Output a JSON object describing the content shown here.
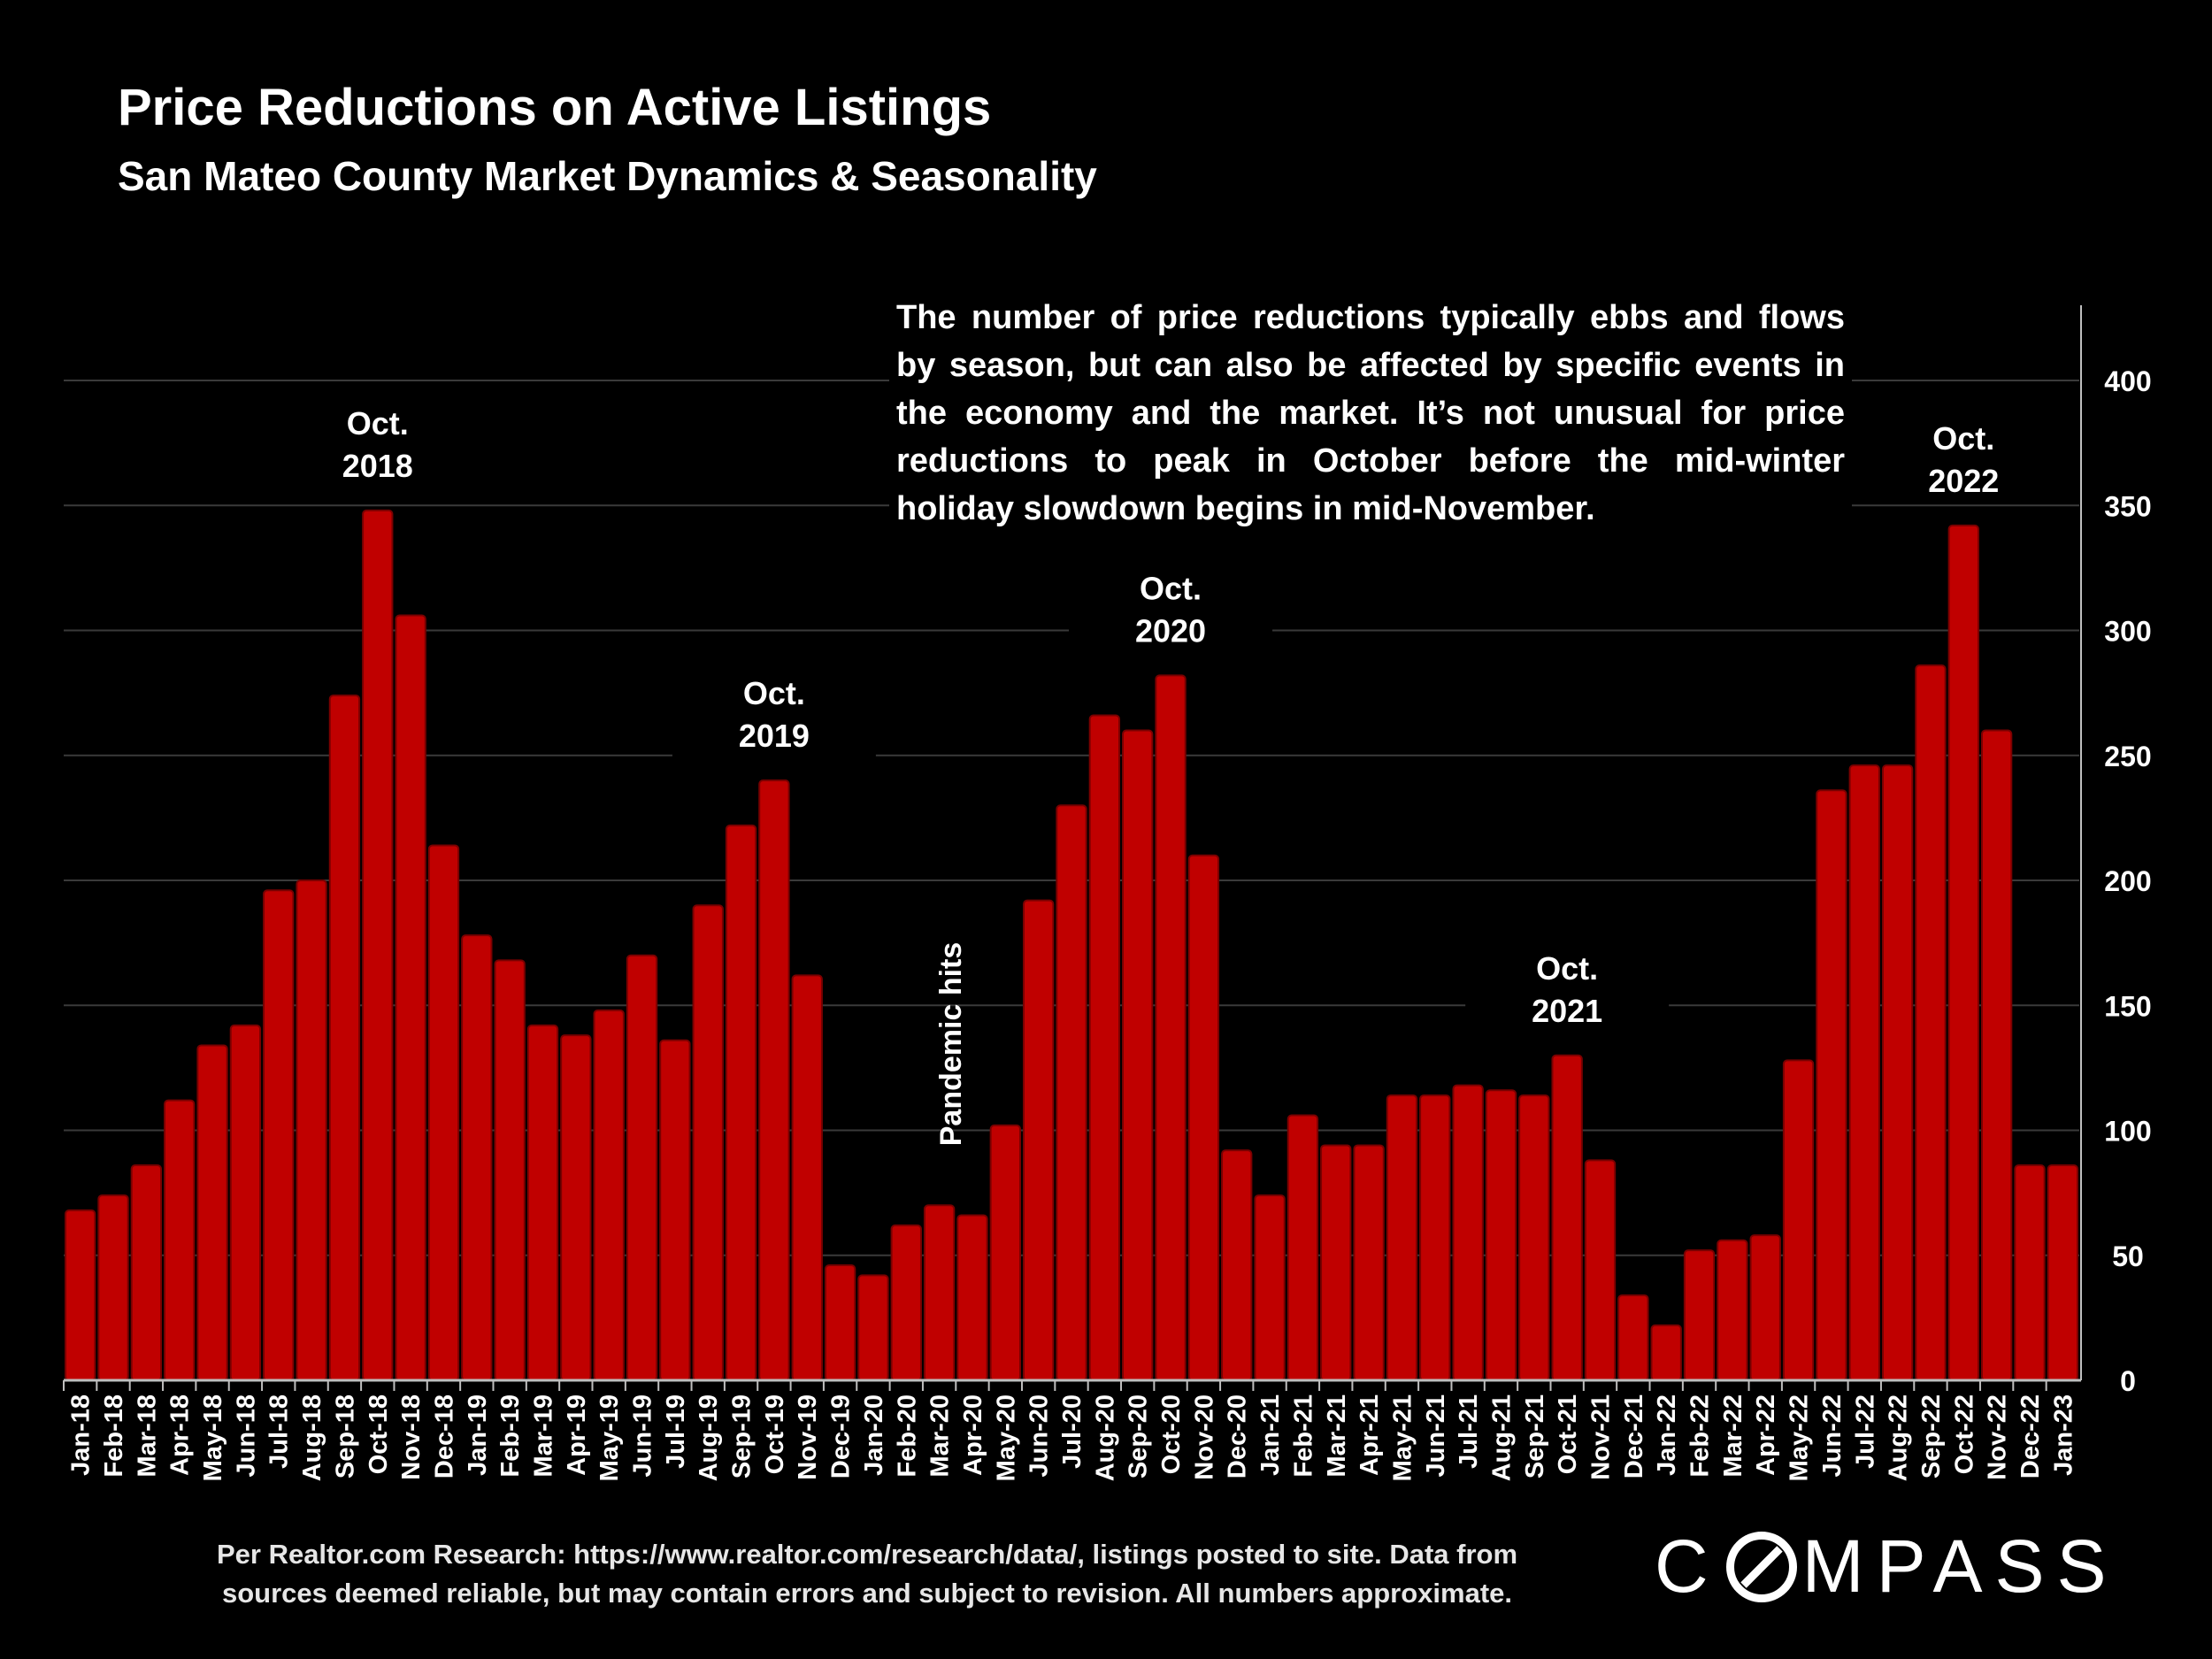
{
  "chart_data": {
    "type": "bar",
    "title": "Price Reductions on Active Listings",
    "subtitle": "San Mateo County Market Dynamics & Seasonality",
    "categories": [
      "Jan-18",
      "Feb-18",
      "Mar-18",
      "Apr-18",
      "May-18",
      "Jun-18",
      "Jul-18",
      "Aug-18",
      "Sep-18",
      "Oct-18",
      "Nov-18",
      "Dec-18",
      "Jan-19",
      "Feb-19",
      "Mar-19",
      "Apr-19",
      "May-19",
      "Jun-19",
      "Jul-19",
      "Aug-19",
      "Sep-19",
      "Oct-19",
      "Nov-19",
      "Dec-19",
      "Jan-20",
      "Feb-20",
      "Mar-20",
      "Apr-20",
      "May-20",
      "Jun-20",
      "Jul-20",
      "Aug-20",
      "Sep-20",
      "Oct-20",
      "Nov-20",
      "Dec-20",
      "Jan-21",
      "Feb-21",
      "Mar-21",
      "Apr-21",
      "May-21",
      "Jun-21",
      "Jul-21",
      "Aug-21",
      "Sep-21",
      "Oct-21",
      "Nov-21",
      "Dec-21",
      "Jan-22",
      "Feb-22",
      "Mar-22",
      "Apr-22",
      "May-22",
      "Jun-22",
      "Jul-22",
      "Aug-22",
      "Sep-22",
      "Oct-22",
      "Nov-22",
      "Dec-22",
      "Jan-23"
    ],
    "values": [
      68,
      74,
      86,
      112,
      134,
      142,
      196,
      200,
      274,
      348,
      306,
      214,
      178,
      168,
      142,
      138,
      148,
      170,
      136,
      190,
      222,
      240,
      162,
      46,
      42,
      62,
      70,
      66,
      102,
      192,
      230,
      266,
      260,
      282,
      210,
      92,
      74,
      106,
      94,
      94,
      114,
      114,
      118,
      116,
      114,
      130,
      88,
      34,
      22,
      52,
      56,
      58,
      128,
      236,
      246,
      246,
      286,
      342,
      260,
      86,
      86
    ],
    "ylim": [
      0,
      430
    ],
    "yticks": [
      0,
      50,
      100,
      150,
      200,
      250,
      300,
      350,
      400
    ],
    "y_axis_side": "right",
    "grid": true,
    "bar_color": "#c00000",
    "annotations": [
      {
        "label_lines": [
          "Oct.",
          "2018"
        ],
        "category": "Oct-18"
      },
      {
        "label_lines": [
          "Oct.",
          "2019"
        ],
        "category": "Oct-19"
      },
      {
        "label_lines": [
          "Oct.",
          "2020"
        ],
        "category": "Oct-20"
      },
      {
        "label_lines": [
          "Oct.",
          "2021"
        ],
        "category": "Oct-21"
      },
      {
        "label_lines": [
          "Oct.",
          "2022"
        ],
        "category": "Oct-22"
      },
      {
        "label_lines": [
          "Pandemic hits"
        ],
        "category": "Apr-20",
        "rotated": true
      }
    ],
    "callout": "The number of price reductions typically ebbs and flows by season, but can also be affected by specific events in the economy and the market. It’s not unusual for price reductions to peak in October before the mid-winter holiday slowdown begins in mid-November."
  },
  "footnote_line1": "Per Realtor.com Research:  https://www.realtor.com/research/data/, listings posted to site. Data from",
  "footnote_line2": "sources deemed reliable, but may contain errors and subject to revision. All numbers approximate.",
  "logo": {
    "text_before": "C",
    "text_after": "MPASS",
    "brand": "COMPASS"
  }
}
